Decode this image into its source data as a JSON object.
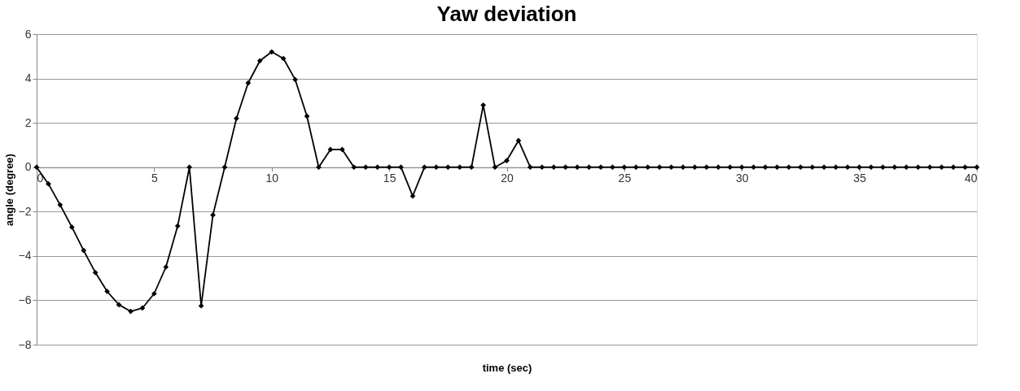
{
  "chart_data": {
    "type": "line",
    "title": "Yaw deviation",
    "xlabel": "time (sec)",
    "ylabel": "angle (degree)",
    "x": [
      0,
      0.5,
      1,
      1.5,
      2,
      2.5,
      3,
      3.5,
      4,
      4.5,
      5,
      5.5,
      6,
      6.5,
      7,
      7.5,
      8,
      8.5,
      9,
      9.5,
      10,
      10.5,
      11,
      11.5,
      12,
      12.5,
      13,
      13.5,
      14,
      14.5,
      15,
      15.5,
      16,
      16.5,
      17,
      17.5,
      18,
      18.5,
      19,
      19.5,
      20,
      20.5,
      21,
      21.5,
      22,
      22.5,
      23,
      23.5,
      24,
      24.5,
      25,
      25.5,
      26,
      26.5,
      27,
      27.5,
      28,
      28.5,
      29,
      29.5,
      30,
      30.5,
      31,
      31.5,
      32,
      32.5,
      33,
      33.5,
      34,
      34.5,
      35,
      35.5,
      36,
      36.5,
      37,
      37.5,
      38,
      38.5,
      39,
      39.5,
      40
    ],
    "series": [
      {
        "color": "#000000",
        "values": [
          0,
          -0.75,
          -1.7,
          -2.7,
          -3.75,
          -4.75,
          -5.6,
          -6.2,
          -6.5,
          -6.35,
          -5.7,
          -4.5,
          -2.65,
          0,
          -6.25,
          -2.15,
          0,
          2.2,
          3.8,
          4.8,
          5.2,
          4.9,
          3.95,
          2.3,
          0,
          0.8,
          0.8,
          0,
          0,
          0,
          0,
          0,
          -1.3,
          0,
          0,
          0,
          0,
          0,
          2.8,
          0,
          0.3,
          1.2,
          0,
          0,
          0,
          0,
          0,
          0,
          0,
          0,
          0,
          0,
          0,
          0,
          0,
          0,
          0,
          0,
          0,
          0,
          0,
          0,
          0,
          0,
          0,
          0,
          0,
          0,
          0,
          0,
          0,
          0,
          0,
          0,
          0,
          0,
          0,
          0,
          0,
          0,
          0
        ]
      }
    ],
    "xlim": [
      0,
      40
    ],
    "xticks": [
      0,
      5,
      10,
      15,
      20,
      25,
      30,
      35,
      40
    ],
    "ylim": [
      -8,
      6
    ],
    "yticks": [
      -8,
      -6,
      -4,
      -2,
      0,
      2,
      4,
      6
    ],
    "grid": "y",
    "marker": "diamond",
    "line_style": "solid"
  }
}
